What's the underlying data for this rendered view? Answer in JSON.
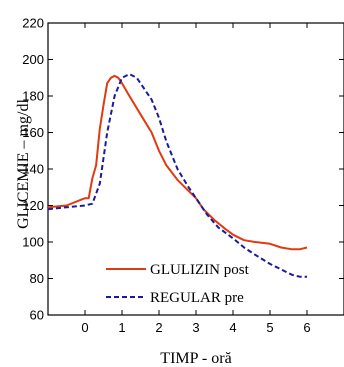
{
  "chart_data": {
    "type": "line",
    "title": "",
    "xlabel": "TIMP - oră",
    "ylabel": "GLICEMIE – mg/dl",
    "xlim": [
      -1,
      7
    ],
    "ylim": [
      60,
      220
    ],
    "x_ticks": [
      0,
      1,
      2,
      3,
      4,
      5,
      6
    ],
    "y_ticks": [
      60,
      80,
      100,
      120,
      140,
      160,
      180,
      200,
      220
    ],
    "grid": false,
    "legend_position": "bottom-right",
    "series": [
      {
        "name": "GLULIZIN post",
        "color": "#e03a10",
        "style": "solid",
        "x": [
          -1,
          -0.5,
          0,
          0.1,
          0.2,
          0.3,
          0.4,
          0.5,
          0.6,
          0.7,
          0.8,
          0.9,
          1.0,
          1.2,
          1.5,
          1.8,
          2.0,
          2.2,
          2.5,
          2.8,
          3.0,
          3.2,
          3.5,
          3.8,
          4.0,
          4.3,
          4.6,
          5.0,
          5.3,
          5.6,
          5.8,
          6.0
        ],
        "y": [
          119,
          120,
          124,
          124,
          135,
          142,
          162,
          175,
          187,
          190,
          191,
          190,
          187,
          180,
          170,
          160,
          150,
          142,
          134,
          128,
          124,
          118,
          112,
          107,
          104,
          101,
          100,
          99,
          97,
          96,
          96,
          97
        ]
      },
      {
        "name": "REGULAR pre",
        "color": "#1a1aa0",
        "style": "dashed",
        "x": [
          -1,
          -0.5,
          0,
          0.2,
          0.4,
          0.6,
          0.8,
          1.0,
          1.2,
          1.4,
          1.6,
          1.8,
          2.0,
          2.2,
          2.5,
          2.8,
          3.0,
          3.3,
          3.6,
          4.0,
          4.3,
          4.6,
          5.0,
          5.3,
          5.6,
          5.8,
          6.0
        ],
        "y": [
          118,
          119,
          120,
          121,
          132,
          160,
          180,
          190,
          192,
          190,
          184,
          178,
          168,
          155,
          140,
          130,
          124,
          115,
          108,
          102,
          97,
          93,
          88,
          85,
          82,
          81,
          81
        ]
      }
    ]
  }
}
